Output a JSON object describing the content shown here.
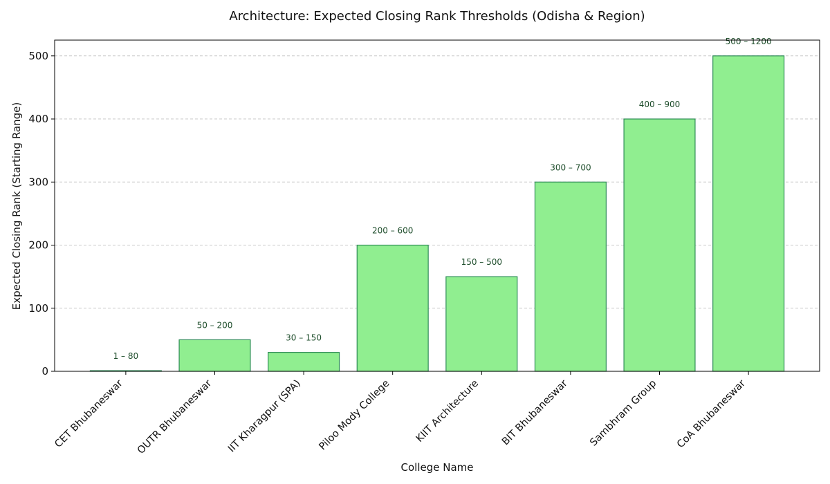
{
  "chart_data": {
    "type": "bar",
    "title": "Architecture: Expected Closing Rank Thresholds (Odisha & Region)",
    "xlabel": "College Name",
    "ylabel": "Expected Closing Rank (Starting Range)",
    "ylim": [
      0,
      525
    ],
    "yticks": [
      0,
      100,
      200,
      300,
      400,
      500
    ],
    "grid": "y-dashed",
    "legend": "none",
    "categories": [
      "CET Bhubaneswar",
      "OUTR Bhubaneswar",
      "IIT Kharagpur (SPA)",
      "Piloo Mody College",
      "KIIT Architecture",
      "BIT Bhubaneswar",
      "Sambhram Group",
      "CoA Bhubaneswar"
    ],
    "values": [
      1,
      50,
      30,
      200,
      150,
      300,
      400,
      500
    ],
    "data_labels": [
      "1 – 80",
      "50 – 200",
      "30 – 150",
      "200 – 600",
      "150 – 500",
      "300 – 700",
      "400 – 900",
      "500 – 1200"
    ],
    "colors": {
      "bar_fill": "#90ee90",
      "bar_edge": "#2e8b57",
      "label_text": "#1e4d2b"
    }
  }
}
